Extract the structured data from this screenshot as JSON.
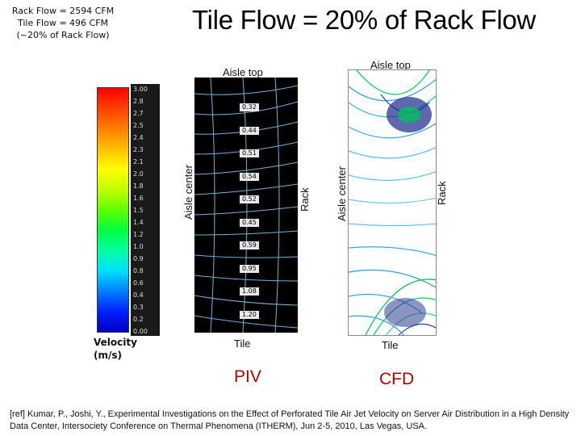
{
  "info": {
    "rack_flow": "Rack Flow = 2594 CFM",
    "tile_flow": "Tile Flow = 496 CFM",
    "percent": "(~20% of Rack Flow)"
  },
  "title": "Tile Flow = 20% of Rack Flow",
  "colorbar": {
    "ticks": [
      "3.00",
      "2.8",
      "2.7",
      "2.5",
      "2.4",
      "2.3",
      "2.1",
      "2.0",
      "1.8",
      "1.6",
      "1.5",
      "1.4",
      "1.2",
      "1.0",
      "0.9",
      "0.8",
      "0.6",
      "0.4",
      "0.3",
      "0.2",
      "0.00"
    ],
    "colors": [
      "#ff0000",
      "#ff4000",
      "#ff8000",
      "#ffc000",
      "#ffff00",
      "#c0ff00",
      "#60ff00",
      "#00ff40",
      "#00ffa0",
      "#00e0ff",
      "#0080ff",
      "#0020ff",
      "#0000c0"
    ]
  },
  "velocity_label": {
    "line1": "Velocity",
    "line2": "(m/s)"
  },
  "piv": {
    "aisle_top": "Aisle top",
    "aisle_center": "Aisle center",
    "rack": "Rack",
    "tile": "Tile",
    "name": "PIV",
    "values": [
      "0.32",
      "0.44",
      "0.51",
      "0.54",
      "0.52",
      "0.45",
      "0.59",
      "0.95",
      "1.08",
      "1.20"
    ]
  },
  "cfd": {
    "aisle_top": "Aisle top",
    "aisle_center": "Aisle center",
    "rack": "Rack",
    "tile": "Tile",
    "name": "CFD"
  },
  "reference": "[ref] Kumar, P., Joshi, Y., Experimental Investigations on the Effect of Perforated Tile Air Jet Velocity on Server Air Distribution in a High Density Data Center, Intersociety Conference on Thermal Phenomena (ITHERM), Jun 2-5, 2010, Las Vegas, USA."
}
